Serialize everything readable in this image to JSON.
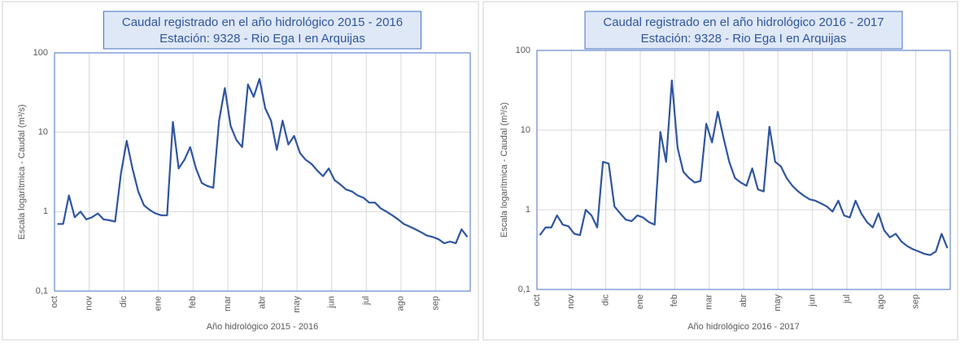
{
  "chart_data": [
    {
      "type": "line",
      "title": "Caudal registrado en el año hidrológico 2015 - 2016",
      "subtitle": "Estación: 9328 - Rio Ega I en Arquijas",
      "x_label": "Año hidrológico 2015 - 2016",
      "y_label": "Escala logarítmica - Caudal (m³/s)",
      "log_scale": true,
      "grid": true,
      "ylim": [
        0.1,
        100
      ],
      "yticks": [
        {
          "value": 0.1,
          "label": "0,1"
        },
        1,
        10,
        100
      ],
      "categories": [
        "oct",
        null,
        null,
        null,
        null,
        null,
        "nov",
        null,
        null,
        null,
        null,
        null,
        "dic",
        null,
        null,
        null,
        null,
        null,
        "ene",
        null,
        null,
        null,
        null,
        null,
        "feb",
        null,
        null,
        null,
        null,
        null,
        "mar",
        null,
        null,
        null,
        null,
        null,
        "abr",
        null,
        null,
        null,
        null,
        null,
        "may",
        null,
        null,
        null,
        null,
        null,
        "jun",
        null,
        null,
        null,
        null,
        null,
        "jul",
        null,
        null,
        null,
        null,
        null,
        "ago",
        null,
        null,
        null,
        null,
        null,
        "sep",
        null,
        null,
        null,
        null,
        null
      ],
      "series": [
        {
          "name": null,
          "color": "#2f55a0",
          "values": [
            0.7,
            0.7,
            1.6,
            0.85,
            1.0,
            0.8,
            0.85,
            0.95,
            0.8,
            0.78,
            0.75,
            3.0,
            7.8,
            3.5,
            1.8,
            1.2,
            1.05,
            0.95,
            0.9,
            0.9,
            13.5,
            3.5,
            4.5,
            6.5,
            3.5,
            2.3,
            2.1,
            2.0,
            14,
            36,
            12,
            8,
            6.5,
            40,
            28,
            47,
            20,
            14,
            6,
            14,
            7,
            9,
            5.5,
            4.5,
            4.0,
            3.3,
            2.8,
            3.5,
            2.5,
            2.2,
            1.9,
            1.8,
            1.6,
            1.5,
            1.3,
            1.3,
            1.1,
            1.0,
            0.9,
            0.8,
            0.7,
            0.65,
            0.6,
            0.55,
            0.5,
            0.48,
            0.45,
            0.4,
            0.42,
            0.4,
            0.6,
            0.48
          ]
        }
      ]
    },
    {
      "type": "line",
      "title": "Caudal registrado en el año hidrológico 2016 - 2017",
      "subtitle": "Estación: 9328 - Rio Ega I en Arquijas",
      "x_label": "Año hidrológico 2016 - 2017",
      "y_label": "Escala logarítmica - Caudal (m³/s)",
      "log_scale": true,
      "grid": true,
      "ylim": [
        0.1,
        100
      ],
      "yticks": [
        {
          "value": 0.1,
          "label": "0,1"
        },
        1,
        10,
        100
      ],
      "categories": [
        "oct",
        null,
        null,
        null,
        null,
        null,
        "nov",
        null,
        null,
        null,
        null,
        null,
        "dic",
        null,
        null,
        null,
        null,
        null,
        "ene",
        null,
        null,
        null,
        null,
        null,
        "feb",
        null,
        null,
        null,
        null,
        null,
        "mar",
        null,
        null,
        null,
        null,
        null,
        "abr",
        null,
        null,
        null,
        null,
        null,
        "may",
        null,
        null,
        null,
        null,
        null,
        "jun",
        null,
        null,
        null,
        null,
        null,
        "jul",
        null,
        null,
        null,
        null,
        null,
        "ago",
        null,
        null,
        null,
        null,
        null,
        "sep",
        null,
        null,
        null,
        null,
        null
      ],
      "series": [
        {
          "name": null,
          "color": "#2f55a0",
          "values": [
            0.48,
            0.6,
            0.6,
            0.85,
            0.65,
            0.62,
            0.5,
            0.48,
            1.0,
            0.85,
            0.6,
            4.0,
            3.8,
            1.1,
            0.9,
            0.75,
            0.72,
            0.85,
            0.8,
            0.7,
            0.65,
            9.5,
            4,
            42,
            6,
            3,
            2.5,
            2.2,
            2.3,
            12,
            7,
            17,
            8,
            4,
            2.5,
            2.2,
            2.0,
            3.3,
            1.8,
            1.7,
            11,
            4,
            3.5,
            2.5,
            2.0,
            1.7,
            1.5,
            1.35,
            1.3,
            1.2,
            1.1,
            0.95,
            1.3,
            0.85,
            0.8,
            1.3,
            0.9,
            0.7,
            0.6,
            0.9,
            0.55,
            0.45,
            0.5,
            0.4,
            0.35,
            0.32,
            0.3,
            0.28,
            0.27,
            0.3,
            0.5,
            0.33
          ]
        }
      ]
    }
  ]
}
